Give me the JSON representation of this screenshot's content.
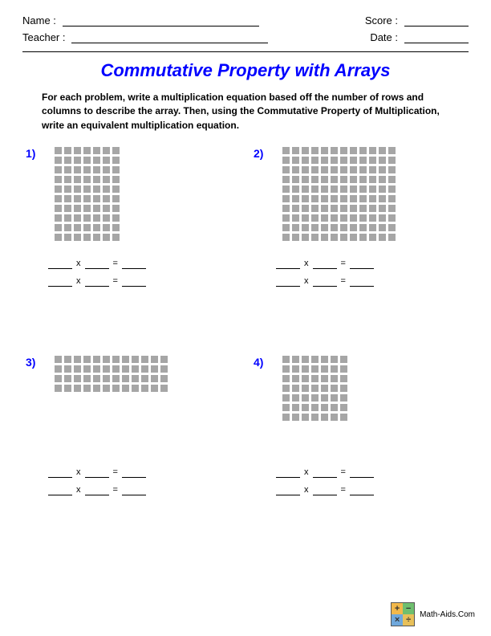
{
  "header": {
    "name_label": "Name :",
    "teacher_label": "Teacher :",
    "score_label": "Score :",
    "date_label": "Date :",
    "name_line_width": 245,
    "teacher_line_width": 245,
    "score_line_width": 80,
    "date_line_width": 80
  },
  "title": "Commutative Property with Arrays",
  "instructions": "For each problem, write a multiplication equation based off the number of rows and columns to describe the array. Then, using the Commutative Property of Multiplication, write an equivalent multiplication equation.",
  "equation": {
    "times": "x",
    "equals": "=",
    "blank_width": 30
  },
  "array_style": {
    "square_size": 9,
    "gap": 3,
    "color": "#a6a6a6"
  },
  "problems": [
    {
      "number": "1)",
      "rows": 10,
      "cols": 7
    },
    {
      "number": "2)",
      "rows": 10,
      "cols": 12
    },
    {
      "number": "3)",
      "rows": 4,
      "cols": 12
    },
    {
      "number": "4)",
      "rows": 7,
      "cols": 7
    }
  ],
  "footer": {
    "text": "Math-Aids.Com",
    "logo_colors": [
      "#f2b84b",
      "#6fbf6f",
      "#6fa8dc",
      "#e8c05a"
    ],
    "logo_symbols": [
      "+",
      "−",
      "×",
      "÷"
    ]
  }
}
